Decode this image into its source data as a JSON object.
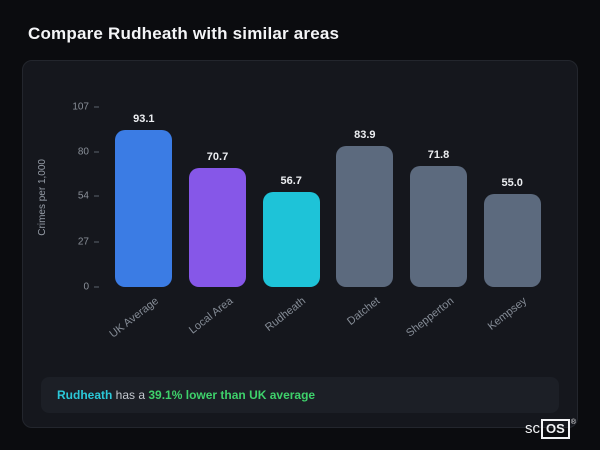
{
  "header": {
    "title": "Compare Rudheath with similar areas"
  },
  "chart_data": {
    "type": "bar",
    "title": "",
    "xlabel": "",
    "ylabel": "Crimes per 1,000",
    "ylim": [
      0,
      107
    ],
    "ymax": 107,
    "yticks": [
      107,
      80,
      54,
      27,
      0
    ],
    "grid": false,
    "legend": false,
    "categories": [
      "UK Average",
      "Local Area",
      "Rudheath",
      "Datchet",
      "Shepperton",
      "Kempsey"
    ],
    "values": [
      93.1,
      70.7,
      56.7,
      83.9,
      71.8,
      55.0
    ],
    "value_labels": [
      "93.1",
      "70.7",
      "56.7",
      "83.9",
      "71.8",
      "55.0"
    ],
    "bar_colors": [
      "#3b7ce4",
      "#8657e8",
      "#1ec3d8",
      "#5c6a7e",
      "#5c6a7e",
      "#5c6a7e"
    ]
  },
  "note": {
    "area": "Rudheath",
    "connector": " has a ",
    "stat": "39.1% lower than UK average",
    "area_color": "#2bc8d8",
    "stat_color": "#3ed16b"
  },
  "logo": {
    "prefix": "sc",
    "boxed": "OS",
    "registered": "®"
  },
  "colors": {
    "page_bg": "#0b0c0f",
    "card_bg": "#15171d",
    "note_bg": "#1c1f26",
    "title_text": "#f4f5f7",
    "axis_text": "#8a9099"
  }
}
